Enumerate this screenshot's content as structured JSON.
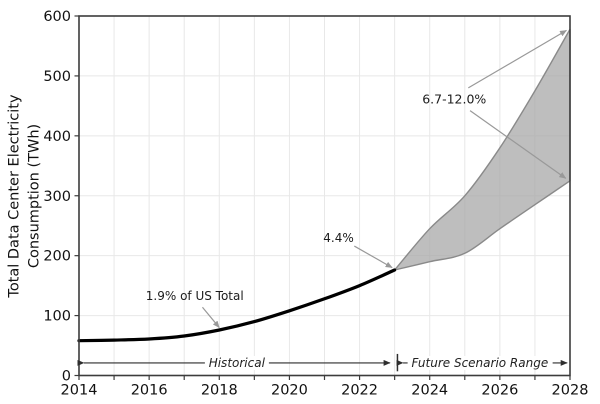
{
  "chart_data": {
    "type": "line",
    "title": "",
    "ylabel": [
      "Total Data Center Electricity",
      "Consumption (TWh)"
    ],
    "xlabel": "",
    "x_range": [
      2014,
      2028
    ],
    "y_range": [
      0,
      600
    ],
    "x_major_ticks": [
      2014,
      2016,
      2018,
      2020,
      2022,
      2024,
      2026,
      2028
    ],
    "x_minor_tick_step": 1,
    "y_ticks": [
      0,
      100,
      200,
      300,
      400,
      500,
      600
    ],
    "grid": "on",
    "legend": "none",
    "series": [
      {
        "name": "Historical",
        "kind": "line",
        "x": [
          2014,
          2015,
          2016,
          2017,
          2018,
          2019,
          2020,
          2021,
          2022,
          2023
        ],
        "values": [
          58,
          59,
          61,
          66,
          76,
          90,
          108,
          128,
          150,
          176
        ]
      },
      {
        "name": "Future Scenario Range",
        "kind": "band",
        "x": [
          2023,
          2024,
          2025,
          2026,
          2027,
          2028
        ],
        "upper": [
          176,
          245,
          300,
          380,
          475,
          578
        ],
        "lower": [
          176,
          190,
          204,
          245,
          285,
          325
        ]
      }
    ],
    "annotations": [
      {
        "id": "us-share-2018",
        "text": "1.9% of US Total",
        "text_at": {
          "year": 2017.3,
          "value": 133
        },
        "arrows": [
          {
            "from": {
              "year": 2017.52,
              "value": 114
            },
            "to": {
              "year": 2018.0,
              "value": 80
            }
          }
        ]
      },
      {
        "id": "us-share-2023",
        "text": "4.4%",
        "text_at": {
          "year": 2021.4,
          "value": 229
        },
        "arrows": [
          {
            "from": {
              "year": 2021.85,
              "value": 216
            },
            "to": {
              "year": 2022.93,
              "value": 180
            }
          }
        ]
      },
      {
        "id": "us-share-2028",
        "text": "6.7-12.0%",
        "text_at": {
          "year": 2024.7,
          "value": 462
        },
        "arrows": [
          {
            "from": {
              "year": 2025.1,
              "value": 480
            },
            "to": {
              "year": 2027.9,
              "value": 576
            }
          },
          {
            "from": {
              "year": 2025.15,
              "value": 442
            },
            "to": {
              "year": 2027.88,
              "value": 329
            }
          }
        ]
      }
    ],
    "period_labels": [
      {
        "id": "historical",
        "text": "Historical",
        "center_year": 2018.5,
        "span": [
          2014.14,
          2022.87
        ],
        "value": 21
      },
      {
        "id": "future",
        "text": "Future Scenario Range",
        "center_year": 2025.43,
        "span": [
          2023.24,
          2027.92
        ],
        "value": 21
      }
    ],
    "divider": {
      "year": 2023.08,
      "value_from": 7,
      "value_to": 36
    }
  },
  "colors": {
    "background": "#ffffff",
    "grid": "#e8e8e8",
    "spine": "#3c3c3c",
    "tick_label": "#111111",
    "historical_line": "#000000",
    "band_fill": "#a8a8a8",
    "band_fill_opacity": "0.75",
    "band_edge": "#8a8a8a",
    "annotation_arrow": "#999999",
    "annotation_text": "#1c1c1c",
    "period_arrow": "#2e2e2e"
  }
}
